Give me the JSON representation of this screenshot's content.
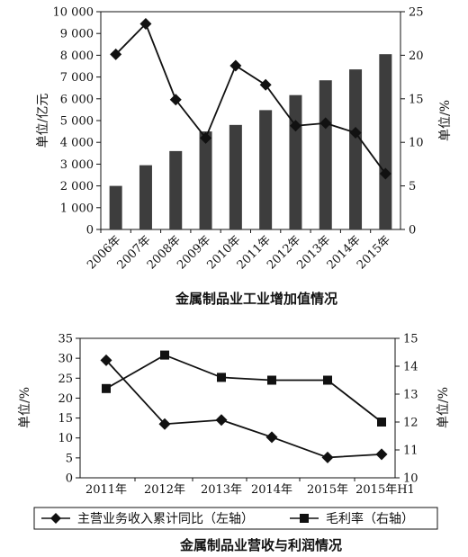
{
  "chart_data": [
    {
      "type": "bar+line",
      "title": "金属制品业工业增加值情况",
      "categories": [
        "2006年",
        "2007年",
        "2008年",
        "2009年",
        "2010年",
        "2011年",
        "2012年",
        "2013年",
        "2014年",
        "2015年"
      ],
      "y_left_label": "单位/亿元",
      "y_right_label": "单位/%",
      "y_left_ticks": [
        "10 000",
        "9 000",
        "8 000",
        "7 000",
        "6 000",
        "5 000",
        "4 000",
        "3 000",
        "2 000",
        "1 000",
        "0"
      ],
      "y_right_ticks": [
        "25",
        "20",
        "15",
        "10",
        "5",
        "0"
      ],
      "ylim_left": [
        0,
        10000
      ],
      "ylim_right": [
        0,
        25
      ],
      "series": [
        {
          "axis": "left",
          "kind": "bar",
          "values": [
            2000,
            2950,
            3600,
            4500,
            4800,
            5480,
            6170,
            6850,
            7350,
            8050
          ]
        },
        {
          "axis": "right",
          "kind": "line",
          "values": [
            20.1,
            23.6,
            14.9,
            10.5,
            18.8,
            16.6,
            11.9,
            12.2,
            11.1,
            6.4
          ]
        }
      ]
    },
    {
      "type": "line",
      "title": "金属制品业营收与利润情况",
      "categories": [
        "2011年",
        "2012年",
        "2013年",
        "2014年",
        "2015年",
        "2015年H1"
      ],
      "y_left_label": "单位/%",
      "y_right_label": "单位/%",
      "y_left_ticks": [
        "35",
        "30",
        "25",
        "20",
        "15",
        "10",
        "5",
        "0"
      ],
      "y_right_ticks": [
        "15",
        "14",
        "13",
        "12",
        "11",
        "10"
      ],
      "ylim_left": [
        0,
        35
      ],
      "ylim_right": [
        10,
        15
      ],
      "series": [
        {
          "name": "主营业务收入累计同比（左轴）",
          "axis": "left",
          "marker": "diamond",
          "values": [
            29.5,
            13.5,
            14.5,
            10.2,
            5.1,
            5.9
          ]
        },
        {
          "name": "毛利率（右轴）",
          "axis": "right",
          "marker": "square",
          "values": [
            13.2,
            14.4,
            13.6,
            13.5,
            13.5,
            12.0
          ]
        }
      ],
      "legend_position": "bottom"
    }
  ]
}
